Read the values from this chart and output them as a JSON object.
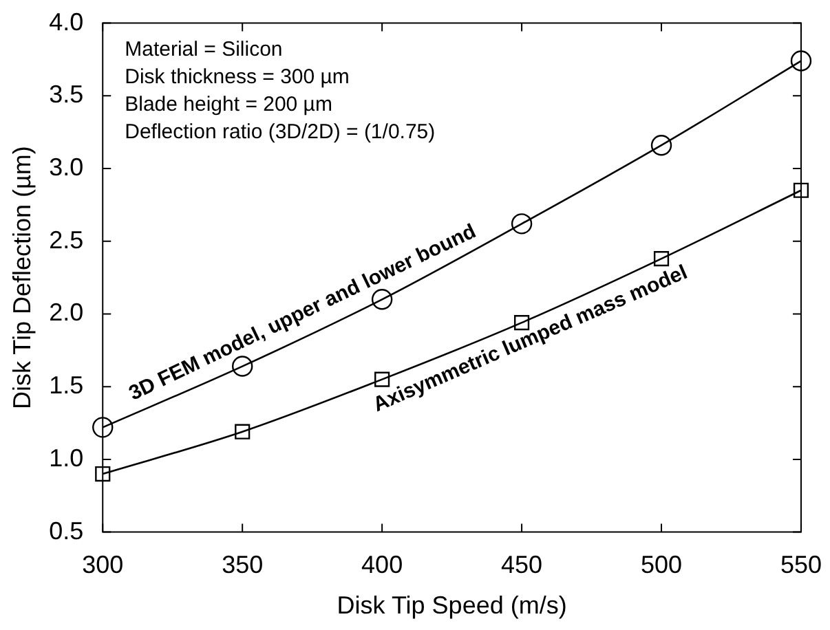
{
  "chart_data": {
    "type": "line",
    "xlabel": "Disk Tip Speed (m/s)",
    "ylabel": "Disk Tip Deflection (µm)",
    "x": [
      300,
      350,
      400,
      450,
      500,
      550
    ],
    "series": [
      {
        "name": "3D FEM model, upper and lower bound",
        "color": "#000000",
        "marker": "circle",
        "values": [
          1.22,
          1.64,
          2.1,
          2.62,
          3.16,
          3.74
        ]
      },
      {
        "name": "Axisymmetric lumped mass model",
        "color": "#000000",
        "marker": "square",
        "values": [
          0.9,
          1.19,
          1.55,
          1.94,
          2.38,
          2.85
        ]
      }
    ],
    "xlim": [
      300,
      550
    ],
    "xticks": [
      300,
      350,
      400,
      450,
      500,
      550
    ],
    "ylim": [
      0.5,
      4.0
    ],
    "yticks": [
      {
        "value": 0.5,
        "label": "0.5"
      },
      {
        "value": 1.0,
        "label": "1.0"
      },
      {
        "value": 1.5,
        "label": "1.5"
      },
      {
        "value": 2.0,
        "label": "2.0"
      },
      {
        "value": 2.5,
        "label": "2.5"
      },
      {
        "value": 3.0,
        "label": "3.0"
      },
      {
        "value": 3.5,
        "label": "3.5"
      },
      {
        "value": 4.0,
        "label": "4.0"
      }
    ],
    "grid": false,
    "legend": false,
    "line_style": "solid",
    "annotations": [
      "Material = Silicon",
      "Disk thickness = 300 µm",
      "Blade height = 200 µm",
      "Deflection ratio (3D/2D) = (1/0.75)"
    ]
  }
}
